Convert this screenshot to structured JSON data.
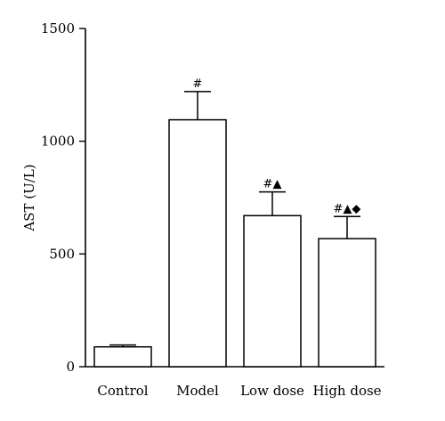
{
  "chart_data": {
    "type": "bar",
    "title": "",
    "xlabel": "",
    "ylabel": "AST (U/L)",
    "ylim": [
      0,
      1500
    ],
    "yticks": [
      0,
      500,
      1000,
      1500
    ],
    "categories": [
      "Control",
      "Model",
      "Low dose",
      "High dose"
    ],
    "values": [
      88,
      1095,
      670,
      568
    ],
    "error": [
      8,
      125,
      105,
      98
    ],
    "annotations": [
      "",
      "#",
      "#▲",
      "#▲◆"
    ],
    "grid": false,
    "bar_fill": "#ffffff",
    "bar_stroke": "#000000"
  }
}
